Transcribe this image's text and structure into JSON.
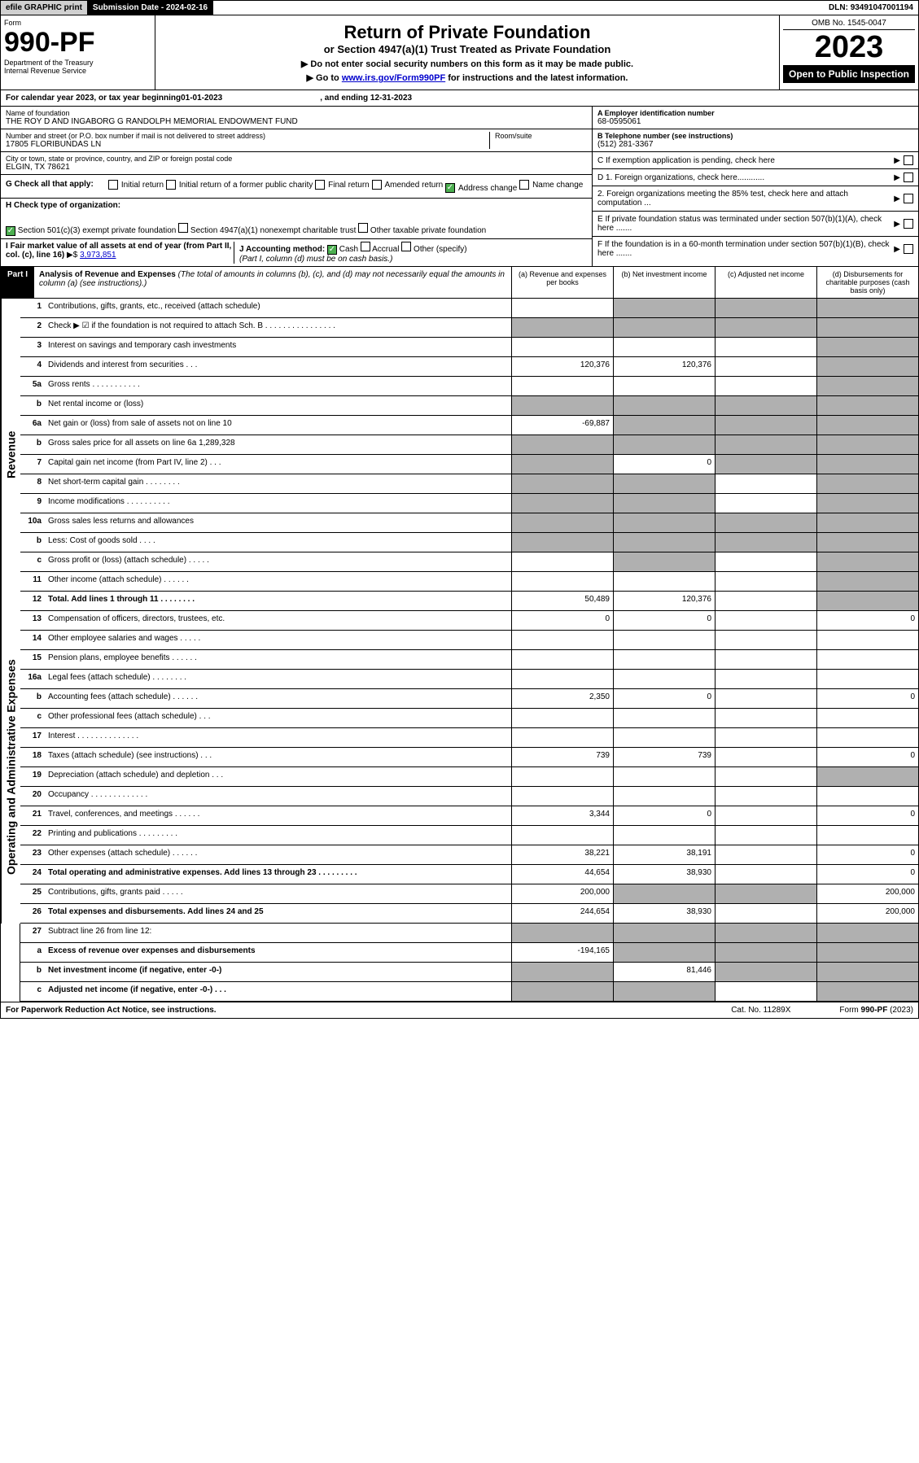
{
  "top": {
    "efile": "efile GRAPHIC print",
    "submission_label": "Submission Date - ",
    "submission_date": "2024-02-16",
    "dln_label": "DLN: ",
    "dln": "93491047001194"
  },
  "header": {
    "form_label": "Form",
    "form_num": "990-PF",
    "dept": "Department of the Treasury\nInternal Revenue Service",
    "title": "Return of Private Foundation",
    "subtitle": "or Section 4947(a)(1) Trust Treated as Private Foundation",
    "note1": "▶ Do not enter social security numbers on this form as it may be made public.",
    "note2": "▶ Go to www.irs.gov/Form990PF for instructions and the latest information.",
    "omb": "OMB No. 1545-0047",
    "year": "2023",
    "open": "Open to Public Inspection"
  },
  "calendar": {
    "begin_label": "For calendar year 2023, or tax year beginning ",
    "begin_date": "01-01-2023",
    "ending_label": ", and ending ",
    "ending_date": "12-31-2023"
  },
  "org": {
    "name_label": "Name of foundation",
    "name": "THE ROY D AND INGABORG G RANDOLPH MEMORIAL ENDOWMENT FUND",
    "addr_label": "Number and street (or P.O. box number if mail is not delivered to street address)",
    "addr": "17805 FLORIBUNDAS LN",
    "room_label": "Room/suite",
    "room": "",
    "city_label": "City or town, state or province, country, and ZIP or foreign postal code",
    "city": "ELGIN, TX  78621",
    "ein_label": "A Employer identification number",
    "ein": "68-0595061",
    "phone_label": "B Telephone number (see instructions)",
    "phone": "(512) 281-3367",
    "c_label": "C If exemption application is pending, check here",
    "d1_label": "D 1. Foreign organizations, check here............",
    "d2_label": "2. Foreign organizations meeting the 85% test, check here and attach computation ...",
    "e_label": "E  If private foundation status was terminated under section 507(b)(1)(A), check here .......",
    "f_label": "F  If the foundation is in a 60-month termination under section 507(b)(1)(B), check here .......",
    "g_label": "G Check all that apply:",
    "g_opts": [
      "Initial return",
      "Initial return of a former public charity",
      "Final return",
      "Amended return",
      "Address change",
      "Name change"
    ],
    "g_checked": [
      false,
      false,
      false,
      false,
      true,
      false
    ],
    "h_label": "H Check type of organization:",
    "h_opts": [
      "Section 501(c)(3) exempt private foundation",
      "Section 4947(a)(1) nonexempt charitable trust",
      "Other taxable private foundation"
    ],
    "h_checked": [
      true,
      false,
      false
    ],
    "i_label": "I Fair market value of all assets at end of year (from Part II, col. (c), line 16)",
    "i_value": "3,973,851",
    "j_label": "J Accounting method:",
    "j_opts": [
      "Cash",
      "Accrual",
      "Other (specify)"
    ],
    "j_checked": [
      true,
      false,
      false
    ],
    "j_note": "(Part I, column (d) must be on cash basis.)"
  },
  "part1": {
    "label": "Part I",
    "title": "Analysis of Revenue and Expenses",
    "title_note": "(The total of amounts in columns (b), (c), and (d) may not necessarily equal the amounts in column (a) (see instructions).)",
    "cols": [
      "(a)   Revenue and expenses per books",
      "(b)   Net investment income",
      "(c)   Adjusted net income",
      "(d)   Disbursements for charitable purposes (cash basis only)"
    ],
    "revenue_label": "Revenue",
    "expenses_label": "Operating and Administrative Expenses",
    "rows": [
      {
        "n": "1",
        "d": "Contributions, gifts, grants, etc., received (attach schedule)",
        "a": "",
        "b": "",
        "c": "",
        "dd": "",
        "sa": false,
        "sb": true,
        "sc": true,
        "sd": true
      },
      {
        "n": "2",
        "d": "Check ▶ ☑ if the foundation is not required to attach Sch. B        .  .  .  .  .  .  .  .  .  .  .  .  .  .  .  .",
        "a": "",
        "b": "",
        "c": "",
        "dd": "",
        "sa": true,
        "sb": true,
        "sc": true,
        "sd": true
      },
      {
        "n": "3",
        "d": "Interest on savings and temporary cash investments",
        "a": "",
        "b": "",
        "c": "",
        "dd": "",
        "sa": false,
        "sb": false,
        "sc": false,
        "sd": true
      },
      {
        "n": "4",
        "d": "Dividends and interest from securities     .  .  .",
        "a": "120,376",
        "b": "120,376",
        "c": "",
        "dd": "",
        "sa": false,
        "sb": false,
        "sc": false,
        "sd": true
      },
      {
        "n": "5a",
        "d": "Gross rents          .  .  .  .  .  .  .  .  .  .  .",
        "a": "",
        "b": "",
        "c": "",
        "dd": "",
        "sa": false,
        "sb": false,
        "sc": false,
        "sd": true
      },
      {
        "n": "b",
        "d": "Net rental income or (loss)",
        "a": "",
        "b": "",
        "c": "",
        "dd": "",
        "sa": true,
        "sb": true,
        "sc": true,
        "sd": true
      },
      {
        "n": "6a",
        "d": "Net gain or (loss) from sale of assets not on line 10",
        "a": "-69,887",
        "b": "",
        "c": "",
        "dd": "",
        "sa": false,
        "sb": true,
        "sc": true,
        "sd": true
      },
      {
        "n": "b",
        "d": "Gross sales price for all assets on line 6a         1,289,328",
        "a": "",
        "b": "",
        "c": "",
        "dd": "",
        "sa": true,
        "sb": true,
        "sc": true,
        "sd": true
      },
      {
        "n": "7",
        "d": "Capital gain net income (from Part IV, line 2)     .  .  .",
        "a": "",
        "b": "0",
        "c": "",
        "dd": "",
        "sa": true,
        "sb": false,
        "sc": true,
        "sd": true
      },
      {
        "n": "8",
        "d": "Net short-term capital gain  .  .  .  .  .  .  .  .",
        "a": "",
        "b": "",
        "c": "",
        "dd": "",
        "sa": true,
        "sb": true,
        "sc": false,
        "sd": true
      },
      {
        "n": "9",
        "d": "Income modifications  .  .  .  .  .  .  .  .  .  .",
        "a": "",
        "b": "",
        "c": "",
        "dd": "",
        "sa": true,
        "sb": true,
        "sc": false,
        "sd": true
      },
      {
        "n": "10a",
        "d": "Gross sales less returns and allowances",
        "a": "",
        "b": "",
        "c": "",
        "dd": "",
        "sa": true,
        "sb": true,
        "sc": true,
        "sd": true
      },
      {
        "n": "b",
        "d": "Less: Cost of goods sold     .  .  .  .",
        "a": "",
        "b": "",
        "c": "",
        "dd": "",
        "sa": true,
        "sb": true,
        "sc": true,
        "sd": true
      },
      {
        "n": "c",
        "d": "Gross profit or (loss) (attach schedule)     .  .  .  .  .",
        "a": "",
        "b": "",
        "c": "",
        "dd": "",
        "sa": false,
        "sb": true,
        "sc": false,
        "sd": true
      },
      {
        "n": "11",
        "d": "Other income (attach schedule)    .  .  .  .  .  .",
        "a": "",
        "b": "",
        "c": "",
        "dd": "",
        "sa": false,
        "sb": false,
        "sc": false,
        "sd": true
      },
      {
        "n": "12",
        "d": "Total. Add lines 1 through 11   .  .  .  .  .  .  .  .",
        "a": "50,489",
        "b": "120,376",
        "c": "",
        "dd": "",
        "sa": false,
        "sb": false,
        "sc": false,
        "sd": true,
        "bold": true
      }
    ],
    "exp_rows": [
      {
        "n": "13",
        "d": "Compensation of officers, directors, trustees, etc.",
        "a": "0",
        "b": "0",
        "c": "",
        "dd": "0",
        "sa": false,
        "sb": false,
        "sc": false,
        "sd": false
      },
      {
        "n": "14",
        "d": "Other employee salaries and wages    .  .  .  .  .",
        "a": "",
        "b": "",
        "c": "",
        "dd": "",
        "sa": false,
        "sb": false,
        "sc": false,
        "sd": false
      },
      {
        "n": "15",
        "d": "Pension plans, employee benefits  .  .  .  .  .  .",
        "a": "",
        "b": "",
        "c": "",
        "dd": "",
        "sa": false,
        "sb": false,
        "sc": false,
        "sd": false
      },
      {
        "n": "16a",
        "d": "Legal fees (attach schedule)  .  .  .  .  .  .  .  .",
        "a": "",
        "b": "",
        "c": "",
        "dd": "",
        "sa": false,
        "sb": false,
        "sc": false,
        "sd": false
      },
      {
        "n": "b",
        "d": "Accounting fees (attach schedule)  .  .  .  .  .  .",
        "a": "2,350",
        "b": "0",
        "c": "",
        "dd": "0",
        "sa": false,
        "sb": false,
        "sc": false,
        "sd": false
      },
      {
        "n": "c",
        "d": "Other professional fees (attach schedule)    .  .  .",
        "a": "",
        "b": "",
        "c": "",
        "dd": "",
        "sa": false,
        "sb": false,
        "sc": false,
        "sd": false
      },
      {
        "n": "17",
        "d": "Interest  .  .  .  .  .  .  .  .  .  .  .  .  .  .",
        "a": "",
        "b": "",
        "c": "",
        "dd": "",
        "sa": false,
        "sb": false,
        "sc": false,
        "sd": false
      },
      {
        "n": "18",
        "d": "Taxes (attach schedule) (see instructions)      .  .  .",
        "a": "739",
        "b": "739",
        "c": "",
        "dd": "0",
        "sa": false,
        "sb": false,
        "sc": false,
        "sd": false
      },
      {
        "n": "19",
        "d": "Depreciation (attach schedule) and depletion    .  .  .",
        "a": "",
        "b": "",
        "c": "",
        "dd": "",
        "sa": false,
        "sb": false,
        "sc": false,
        "sd": true
      },
      {
        "n": "20",
        "d": "Occupancy  .  .  .  .  .  .  .  .  .  .  .  .  .",
        "a": "",
        "b": "",
        "c": "",
        "dd": "",
        "sa": false,
        "sb": false,
        "sc": false,
        "sd": false
      },
      {
        "n": "21",
        "d": "Travel, conferences, and meetings  .  .  .  .  .  .",
        "a": "3,344",
        "b": "0",
        "c": "",
        "dd": "0",
        "sa": false,
        "sb": false,
        "sc": false,
        "sd": false
      },
      {
        "n": "22",
        "d": "Printing and publications  .  .  .  .  .  .  .  .  .",
        "a": "",
        "b": "",
        "c": "",
        "dd": "",
        "sa": false,
        "sb": false,
        "sc": false,
        "sd": false
      },
      {
        "n": "23",
        "d": "Other expenses (attach schedule)  .  .  .  .  .  .",
        "a": "38,221",
        "b": "38,191",
        "c": "",
        "dd": "0",
        "sa": false,
        "sb": false,
        "sc": false,
        "sd": false
      },
      {
        "n": "24",
        "d": "Total operating and administrative expenses. Add lines 13 through 23   .  .  .  .  .  .  .  .  .",
        "a": "44,654",
        "b": "38,930",
        "c": "",
        "dd": "0",
        "sa": false,
        "sb": false,
        "sc": false,
        "sd": false,
        "bold": true
      },
      {
        "n": "25",
        "d": "Contributions, gifts, grants paid     .  .  .  .  .",
        "a": "200,000",
        "b": "",
        "c": "",
        "dd": "200,000",
        "sa": false,
        "sb": true,
        "sc": true,
        "sd": false
      },
      {
        "n": "26",
        "d": "Total expenses and disbursements. Add lines 24 and 25",
        "a": "244,654",
        "b": "38,930",
        "c": "",
        "dd": "200,000",
        "sa": false,
        "sb": false,
        "sc": false,
        "sd": false,
        "bold": true
      }
    ],
    "bottom_rows": [
      {
        "n": "27",
        "d": "Subtract line 26 from line 12:",
        "a": "",
        "b": "",
        "c": "",
        "dd": "",
        "sa": true,
        "sb": true,
        "sc": true,
        "sd": true
      },
      {
        "n": "a",
        "d": "Excess of revenue over expenses and disbursements",
        "a": "-194,165",
        "b": "",
        "c": "",
        "dd": "",
        "sa": false,
        "sb": true,
        "sc": true,
        "sd": true,
        "bold": true
      },
      {
        "n": "b",
        "d": "Net investment income (if negative, enter -0-)",
        "a": "",
        "b": "81,446",
        "c": "",
        "dd": "",
        "sa": true,
        "sb": false,
        "sc": true,
        "sd": true,
        "bold": true
      },
      {
        "n": "c",
        "d": "Adjusted net income (if negative, enter -0-)   .  .  .",
        "a": "",
        "b": "",
        "c": "",
        "dd": "",
        "sa": true,
        "sb": true,
        "sc": false,
        "sd": true,
        "bold": true
      }
    ]
  },
  "footer": {
    "left": "For Paperwork Reduction Act Notice, see instructions.",
    "mid": "Cat. No. 11289X",
    "right": "Form 990-PF (2023)"
  },
  "colors": {
    "shaded": "#b0b0b0",
    "topbar_grey": "#d0d0d0",
    "link": "#0000cc",
    "check_green": "#4caf50"
  }
}
